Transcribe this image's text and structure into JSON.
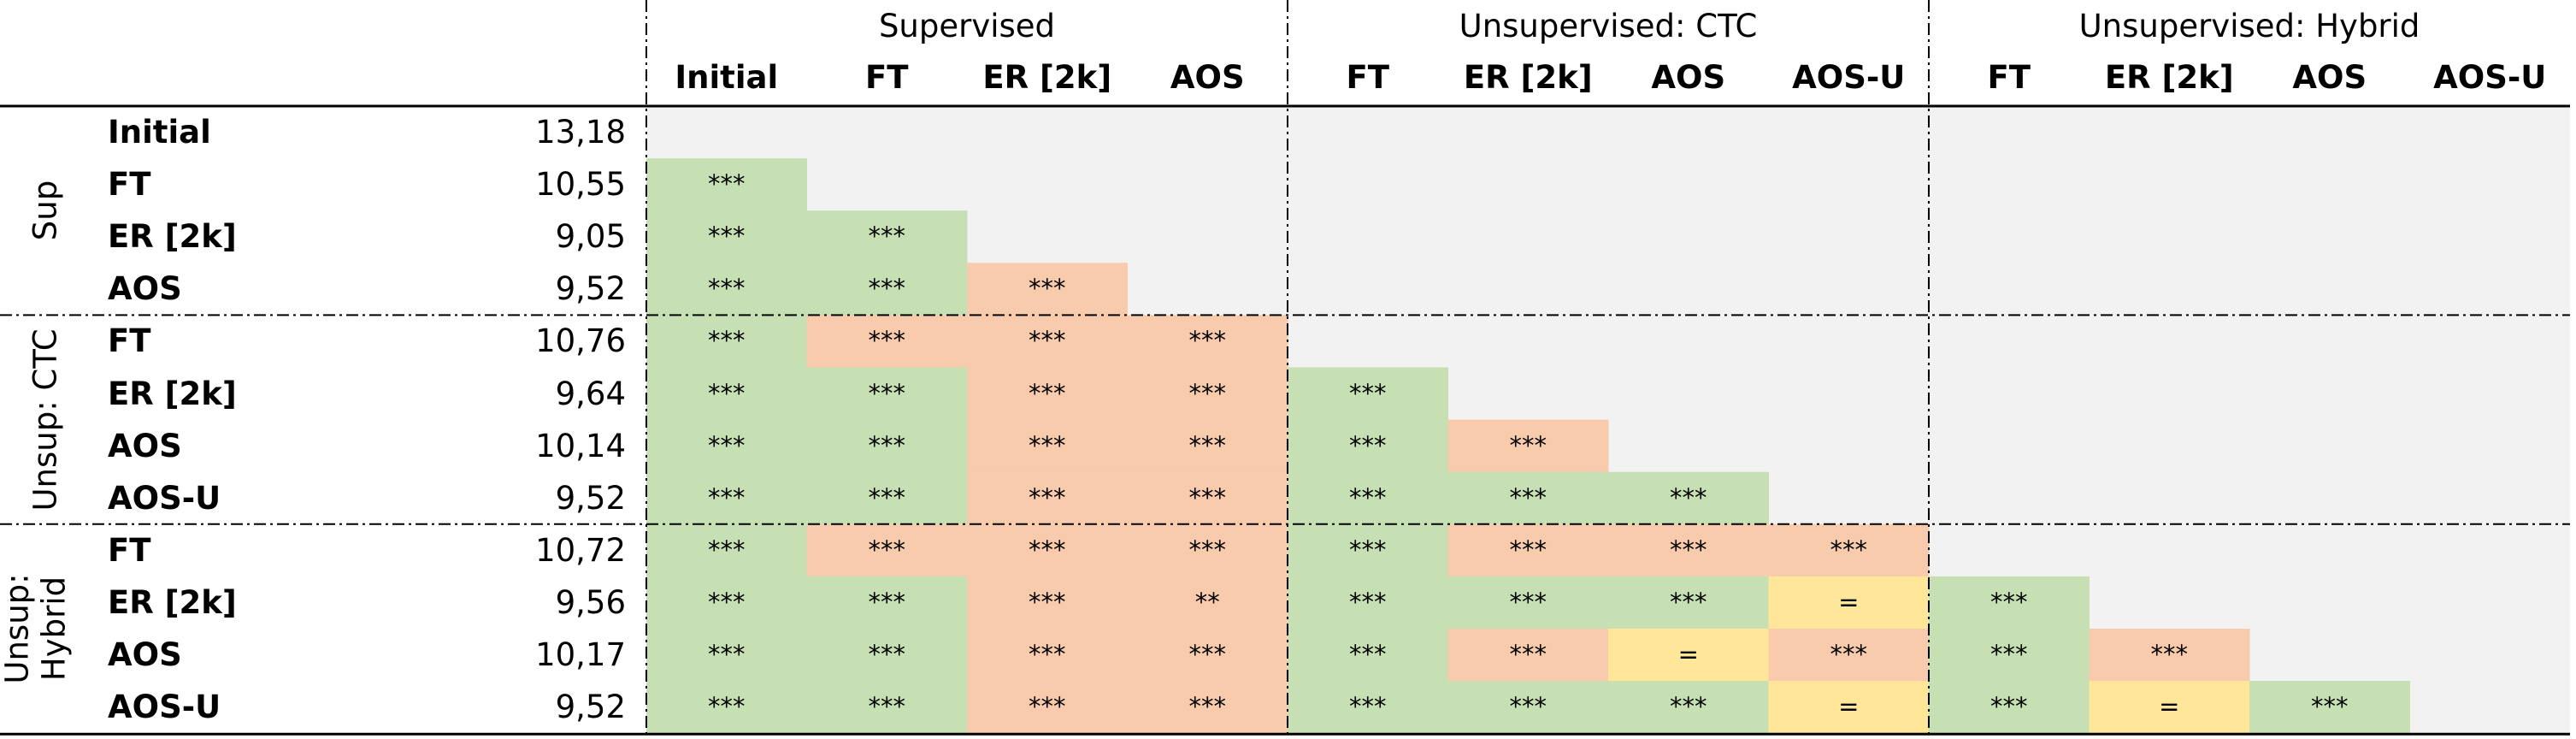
{
  "table": {
    "groups": [
      "Supervised",
      "Unsupervised: CTC",
      "Unsupervised: Hybrid"
    ],
    "columns": [
      "Initial",
      "FT",
      "ER [2k]",
      "AOS",
      "FT",
      "ER [2k]",
      "AOS",
      "AOS-U",
      "FT",
      "ER [2k]",
      "AOS",
      "AOS-U"
    ],
    "sections": [
      {
        "label": "Sup",
        "rows": [
          {
            "label": "Initial",
            "value": "13,18",
            "cells": []
          },
          {
            "label": "FT",
            "value": "10,55",
            "cells": [
              {
                "t": "***",
                "c": "g"
              }
            ]
          },
          {
            "label": "ER [2k]",
            "value": "9,05",
            "cells": [
              {
                "t": "***",
                "c": "g"
              },
              {
                "t": "***",
                "c": "g"
              }
            ]
          },
          {
            "label": "AOS",
            "value": "9,52",
            "cells": [
              {
                "t": "***",
                "c": "g"
              },
              {
                "t": "***",
                "c": "g"
              },
              {
                "t": "***",
                "c": "o"
              }
            ]
          }
        ]
      },
      {
        "label": "Unsup: CTC",
        "rows": [
          {
            "label": "FT",
            "value": "10,76",
            "cells": [
              {
                "t": "***",
                "c": "g"
              },
              {
                "t": "***",
                "c": "o"
              },
              {
                "t": "***",
                "c": "o"
              },
              {
                "t": "***",
                "c": "o"
              }
            ]
          },
          {
            "label": "ER [2k]",
            "value": "9,64",
            "cells": [
              {
                "t": "***",
                "c": "g"
              },
              {
                "t": "***",
                "c": "g"
              },
              {
                "t": "***",
                "c": "o"
              },
              {
                "t": "***",
                "c": "o"
              },
              {
                "t": "***",
                "c": "g"
              }
            ]
          },
          {
            "label": "AOS",
            "value": "10,14",
            "cells": [
              {
                "t": "***",
                "c": "g"
              },
              {
                "t": "***",
                "c": "g"
              },
              {
                "t": "***",
                "c": "o"
              },
              {
                "t": "***",
                "c": "o"
              },
              {
                "t": "***",
                "c": "g"
              },
              {
                "t": "***",
                "c": "o"
              }
            ]
          },
          {
            "label": "AOS-U",
            "value": "9,52",
            "cells": [
              {
                "t": "***",
                "c": "g"
              },
              {
                "t": "***",
                "c": "g"
              },
              {
                "t": "***",
                "c": "o"
              },
              {
                "t": "***",
                "c": "o"
              },
              {
                "t": "***",
                "c": "g"
              },
              {
                "t": "***",
                "c": "g"
              },
              {
                "t": "***",
                "c": "g"
              }
            ]
          }
        ]
      },
      {
        "label": "Unsup: Hybrid",
        "label_lines": [
          "Unsup:",
          "Hybrid"
        ],
        "rows": [
          {
            "label": "FT",
            "value": "10,72",
            "cells": [
              {
                "t": "***",
                "c": "g"
              },
              {
                "t": "***",
                "c": "o"
              },
              {
                "t": "***",
                "c": "o"
              },
              {
                "t": "***",
                "c": "o"
              },
              {
                "t": "***",
                "c": "g"
              },
              {
                "t": "***",
                "c": "o"
              },
              {
                "t": "***",
                "c": "o"
              },
              {
                "t": "***",
                "c": "o"
              }
            ]
          },
          {
            "label": "ER [2k]",
            "value": "9,56",
            "cells": [
              {
                "t": "***",
                "c": "g"
              },
              {
                "t": "***",
                "c": "g"
              },
              {
                "t": "***",
                "c": "o"
              },
              {
                "t": "**",
                "c": "o"
              },
              {
                "t": "***",
                "c": "g"
              },
              {
                "t": "***",
                "c": "g"
              },
              {
                "t": "***",
                "c": "g"
              },
              {
                "t": "=",
                "c": "y"
              },
              {
                "t": "***",
                "c": "g"
              }
            ]
          },
          {
            "label": "AOS",
            "value": "10,17",
            "cells": [
              {
                "t": "***",
                "c": "g"
              },
              {
                "t": "***",
                "c": "g"
              },
              {
                "t": "***",
                "c": "o"
              },
              {
                "t": "***",
                "c": "o"
              },
              {
                "t": "***",
                "c": "g"
              },
              {
                "t": "***",
                "c": "o"
              },
              {
                "t": "=",
                "c": "y"
              },
              {
                "t": "***",
                "c": "o"
              },
              {
                "t": "***",
                "c": "g"
              },
              {
                "t": "***",
                "c": "o"
              }
            ]
          },
          {
            "label": "AOS-U",
            "value": "9,52",
            "cells": [
              {
                "t": "***",
                "c": "g"
              },
              {
                "t": "***",
                "c": "g"
              },
              {
                "t": "***",
                "c": "o"
              },
              {
                "t": "***",
                "c": "o"
              },
              {
                "t": "***",
                "c": "g"
              },
              {
                "t": "***",
                "c": "g"
              },
              {
                "t": "***",
                "c": "g"
              },
              {
                "t": "=",
                "c": "y"
              },
              {
                "t": "***",
                "c": "g"
              },
              {
                "t": "=",
                "c": "y"
              },
              {
                "t": "***",
                "c": "g"
              }
            ]
          }
        ]
      }
    ]
  },
  "colors": {
    "g": "#c6e0b4",
    "o": "#f8cbad",
    "y": "#ffe699",
    "empty": "#f2f2f2",
    "line": "#000000"
  }
}
